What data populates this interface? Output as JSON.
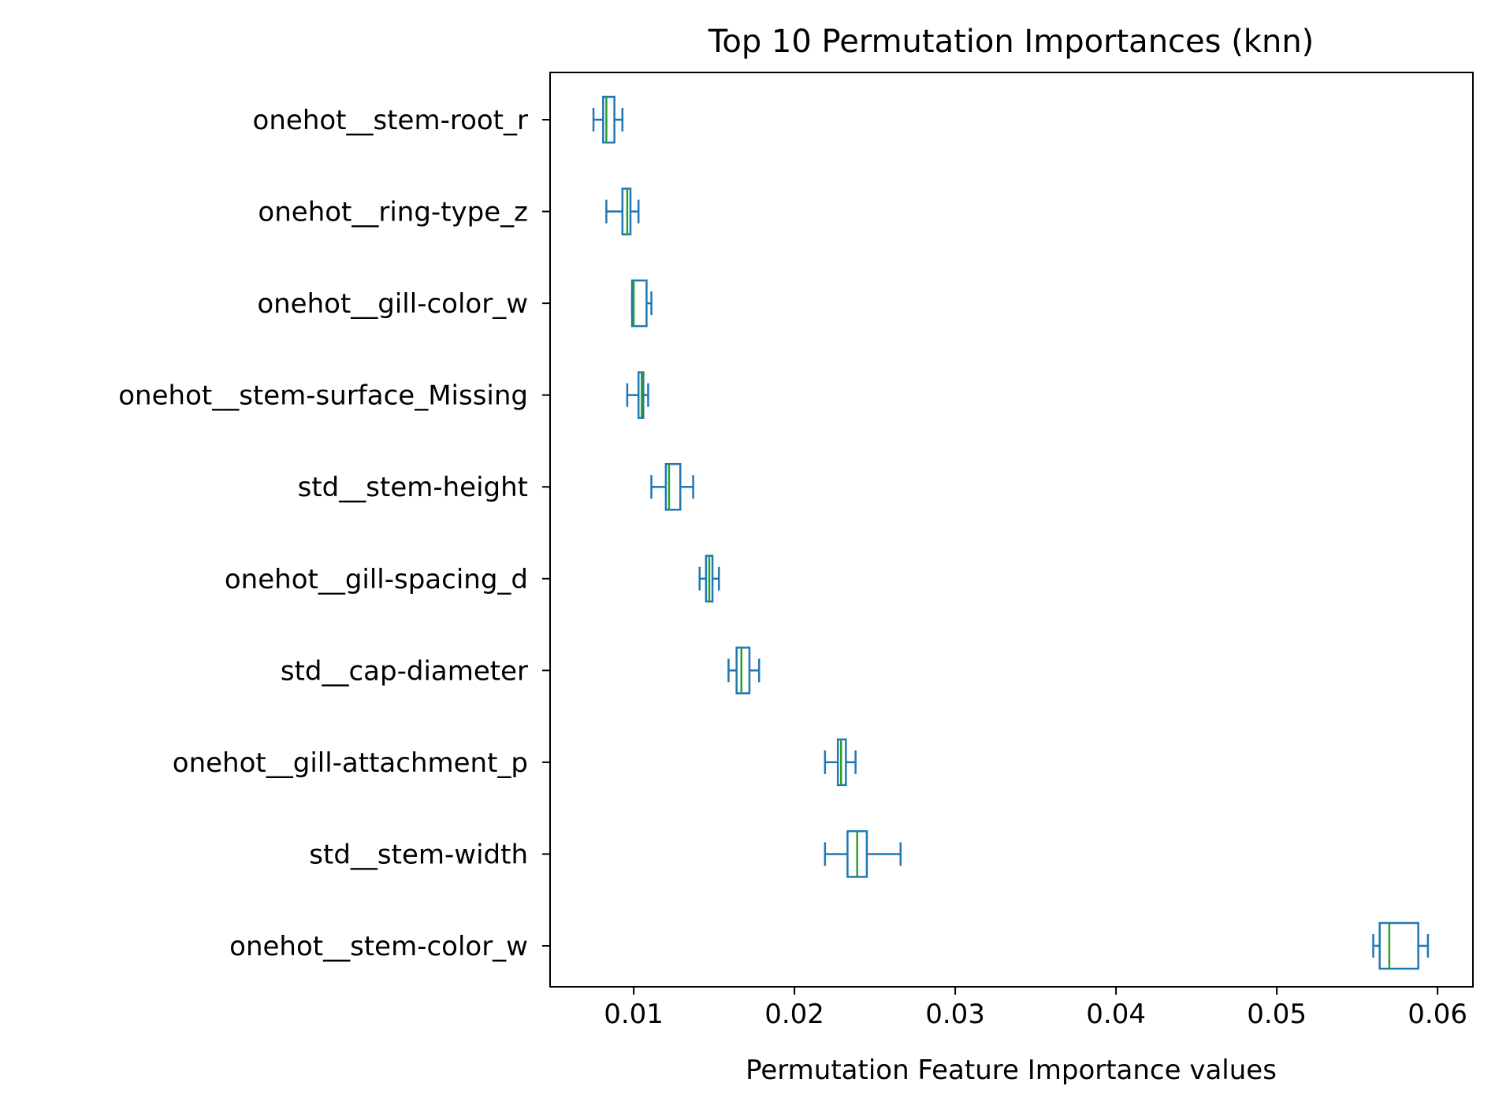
{
  "chart_data": {
    "type": "box",
    "orientation": "horizontal",
    "title": "Top 10 Permutation Importances (knn)",
    "xlabel": "Permutation Feature Importance values",
    "ylabel": "",
    "xlim": [
      0.0048,
      0.0622
    ],
    "xticks": [
      0.01,
      0.02,
      0.03,
      0.04,
      0.05,
      0.06
    ],
    "xtick_labels": [
      "0.01",
      "0.02",
      "0.03",
      "0.04",
      "0.05",
      "0.06"
    ],
    "grid": false,
    "legend": null,
    "colors": {
      "box": "#1f77b4",
      "median": "#2ca02c",
      "axes": "#000000",
      "background": "#ffffff"
    },
    "categories": [
      "onehot__stem-root_r",
      "onehot__ring-type_z",
      "onehot__gill-color_w",
      "onehot__stem-surface_Missing",
      "std__stem-height",
      "onehot__gill-spacing_d",
      "std__cap-diameter",
      "onehot__gill-attachment_p",
      "std__stem-width",
      "onehot__stem-color_w"
    ],
    "boxes": [
      {
        "whislo": 0.0075,
        "q1": 0.0081,
        "med": 0.0083,
        "q3": 0.0088,
        "whishi": 0.0093
      },
      {
        "whislo": 0.0083,
        "q1": 0.0093,
        "med": 0.0096,
        "q3": 0.0098,
        "whishi": 0.0103
      },
      {
        "whislo": 0.0099,
        "q1": 0.0099,
        "med": 0.01,
        "q3": 0.0108,
        "whishi": 0.0111
      },
      {
        "whislo": 0.0096,
        "q1": 0.0103,
        "med": 0.0105,
        "q3": 0.0106,
        "whishi": 0.0109
      },
      {
        "whislo": 0.0111,
        "q1": 0.012,
        "med": 0.0122,
        "q3": 0.0129,
        "whishi": 0.0137
      },
      {
        "whislo": 0.0141,
        "q1": 0.0145,
        "med": 0.0147,
        "q3": 0.0149,
        "whishi": 0.0153
      },
      {
        "whislo": 0.0159,
        "q1": 0.0164,
        "med": 0.0167,
        "q3": 0.0172,
        "whishi": 0.0178
      },
      {
        "whislo": 0.0219,
        "q1": 0.0227,
        "med": 0.0229,
        "q3": 0.0232,
        "whishi": 0.0238
      },
      {
        "whislo": 0.0219,
        "q1": 0.0233,
        "med": 0.0239,
        "q3": 0.0245,
        "whishi": 0.0266
      },
      {
        "whislo": 0.056,
        "q1": 0.0564,
        "med": 0.057,
        "q3": 0.0588,
        "whishi": 0.0594
      }
    ]
  }
}
